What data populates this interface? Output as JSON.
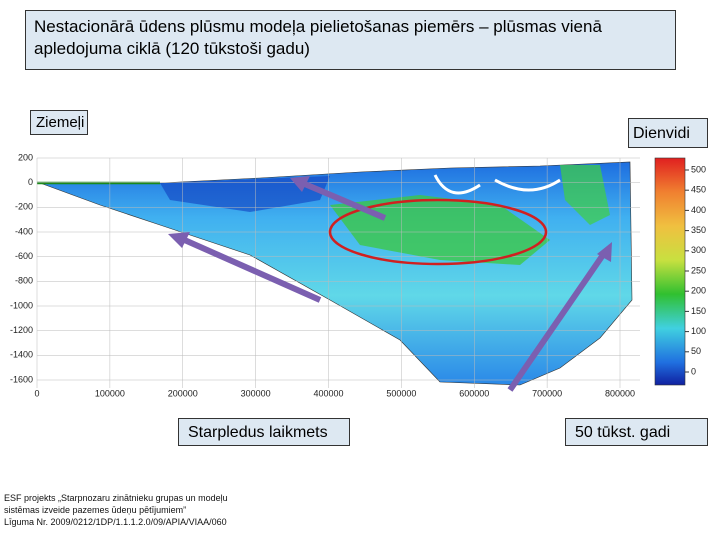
{
  "header": {
    "title": "Nestacionārā ūdens plūsmu modeļa pielietošanas piemērs – plūsmas vienā apledojuma ciklā (120 tūkstoši gadu)"
  },
  "labels": {
    "north": "Ziemeļi",
    "south": "Dienvidi",
    "interglacial": "Starpledus laikmets",
    "time": "50 tūkst. gadi"
  },
  "figure": {
    "yticks": [
      200,
      0,
      -200,
      -400,
      -600,
      -800,
      -1000,
      -1200,
      -1400,
      -1600
    ],
    "xticks": [
      0,
      100000,
      200000,
      300000,
      400000,
      500000,
      600000,
      700000,
      800000
    ],
    "colorbar_ticks": [
      500,
      450,
      400,
      350,
      300,
      250,
      200,
      150,
      100,
      50,
      0
    ]
  },
  "footer": {
    "lines": [
      "ESF projekts „Starpnozaru zinātnieku grupas un modeļu",
      "sistēmas izveide pazemes ūdeņu pētījumiem”",
      "Līguma Nr. 2009/0212/1DP/1.1.1.2.0/09/APIA/VIAA/060"
    ]
  }
}
